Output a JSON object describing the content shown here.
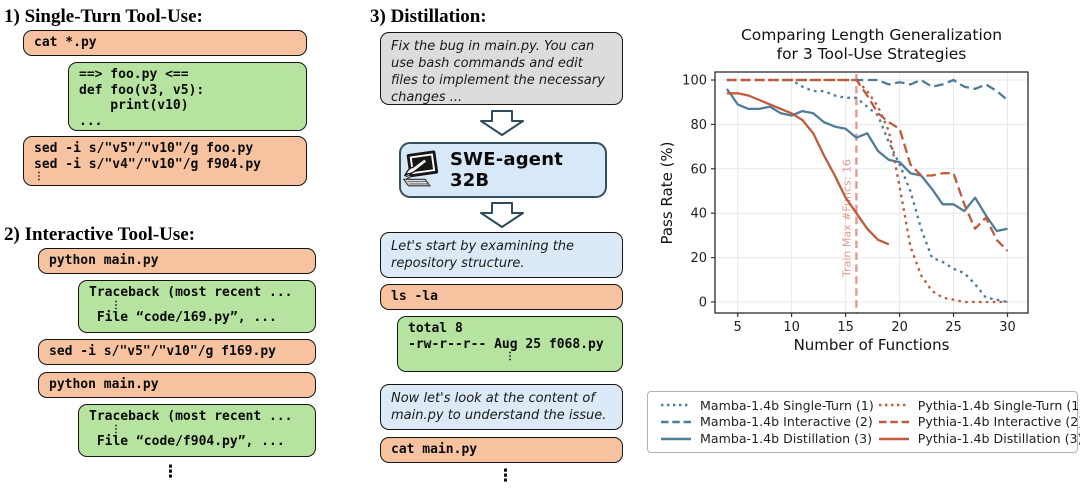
{
  "panel1": {
    "title": "1) Single-Turn Tool-Use:",
    "cmd1": "cat *.py",
    "out1_lines": [
      "==> foo.py <==",
      "def foo(v3, v5):",
      "    print(v10)",
      "..."
    ],
    "cmd2_lines": [
      "sed -i s/\"v5\"/\"v10\"/g foo.py",
      "sed -i s/\"v4\"/\"v10\"/g f904.py"
    ],
    "cmd2_ellipsis": "⋮"
  },
  "panel2": {
    "title": "2) Interactive Tool-Use:",
    "cmd1": "python main.py",
    "out1_line1": "Traceback (most recent ...",
    "out1_dots": "⋮",
    "out1_line2": " File “code/169.py”, ...",
    "cmd2": "sed -i s/\"v5\"/\"v10\"/g f169.py",
    "cmd3": "python main.py",
    "out2_line1": "Traceback (most recent ...",
    "out2_dots": "⋮",
    "out2_line2": " File “code/f904.py”, ...",
    "ellipsis": "⋮"
  },
  "panel3": {
    "title": "3) Distillation:",
    "prompt": "Fix the bug in main.py. You can use bash commands and edit files to implement the necessary changes ...",
    "agent_label": "SWE-agent 32B",
    "msg1": "Let's start by examining the repository structure.",
    "cmd1": "ls -la",
    "out1_lines": [
      "total 8",
      "-rw-r--r-- Aug 25 f068.py"
    ],
    "out1_ellipsis": "⋮",
    "msg2": "Now let's look at the content of main.py to understand the issue.",
    "cmd2": "cat main.py",
    "ellipsis": "⋮"
  },
  "colors": {
    "mamba_blue": "#4e7d9c",
    "pythia_red": "#c05b3c",
    "vline_salmon": "#e49a91",
    "command_bg": "#f6c29f",
    "output_bg": "#b7e3a0",
    "prompt_bg": "#dcdcdc",
    "message_bg": "#dce9f6",
    "agent_bg": "#d7e9f8",
    "box_border": "#141414",
    "arrow_stroke": "#2b4d5c"
  },
  "chart_data": {
    "type": "line",
    "title_lines": [
      "Comparing Length Generalization",
      "for 3 Tool-Use Strategies"
    ],
    "xlabel": "Number of Functions",
    "ylabel": "Pass Rate (%)",
    "xlim": [
      2.9,
      31.9
    ],
    "ylim": [
      -4.95,
      103.6
    ],
    "xticks": [
      5,
      10,
      15,
      20,
      25,
      30
    ],
    "yticks": [
      0,
      20,
      40,
      60,
      80,
      100
    ],
    "grid": true,
    "legend_position": "bottom",
    "vline": {
      "x": 16,
      "label": "Train Max #Funcs: 16",
      "color": "#e49a91"
    },
    "x": [
      4,
      5,
      6,
      7,
      8,
      9,
      10,
      11,
      12,
      13,
      14,
      15,
      16,
      17,
      18,
      19,
      20,
      21,
      22,
      23,
      24,
      25,
      26,
      27,
      28,
      29,
      30
    ],
    "series": [
      {
        "name": "Mamba-1.4b Single-Turn (1)",
        "style": "dotted",
        "color": "#4e7d9c",
        "values": [
          100,
          100,
          100,
          100,
          100,
          100,
          100,
          97,
          95,
          95,
          93,
          92,
          92,
          88,
          84,
          72,
          62,
          50,
          33,
          20,
          18,
          15,
          13,
          8,
          2,
          1,
          0
        ]
      },
      {
        "name": "Mamba-1.4b Interactive (2)",
        "style": "dashed",
        "color": "#4e7d9c",
        "values": [
          100,
          100,
          100,
          100,
          100,
          100,
          100,
          100,
          100,
          100,
          100,
          100,
          100,
          100,
          100,
          98,
          99,
          98,
          100,
          97,
          98,
          100,
          97,
          96,
          98,
          95,
          91
        ]
      },
      {
        "name": "Mamba-1.4b Distillation (3)",
        "style": "solid",
        "color": "#4e7d9c",
        "values": [
          96,
          89,
          87,
          87,
          88,
          85,
          84,
          86,
          85,
          81,
          79,
          78,
          74,
          76,
          68,
          64,
          63,
          58,
          57,
          51,
          44,
          44,
          41,
          47,
          39,
          32,
          33
        ]
      },
      {
        "name": "Pythia-1.4b Single-Turn (1)",
        "style": "dotted",
        "color": "#c05b3c",
        "values": [
          100,
          100,
          100,
          100,
          100,
          100,
          100,
          100,
          100,
          100,
          100,
          100,
          100,
          95,
          88,
          77,
          52,
          25,
          12,
          5,
          2,
          1,
          0,
          0,
          0,
          0,
          0
        ]
      },
      {
        "name": "Pythia-1.4b Interactive (2)",
        "style": "dashed",
        "color": "#c05b3c",
        "values": [
          100,
          100,
          100,
          100,
          100,
          100,
          100,
          100,
          100,
          100,
          100,
          100,
          100,
          93,
          85,
          81,
          78,
          62,
          57,
          57,
          58,
          58,
          44,
          33,
          38,
          28,
          23
        ]
      },
      {
        "name": "Pythia-1.4b Distillation (3)",
        "style": "solid",
        "color": "#c05b3c",
        "values": [
          94,
          94,
          93,
          91,
          89,
          87,
          85,
          82,
          76,
          66,
          57,
          47,
          40,
          33,
          28,
          26,
          null,
          null,
          null,
          null,
          null,
          null,
          null,
          null,
          null,
          null,
          null
        ]
      }
    ]
  }
}
